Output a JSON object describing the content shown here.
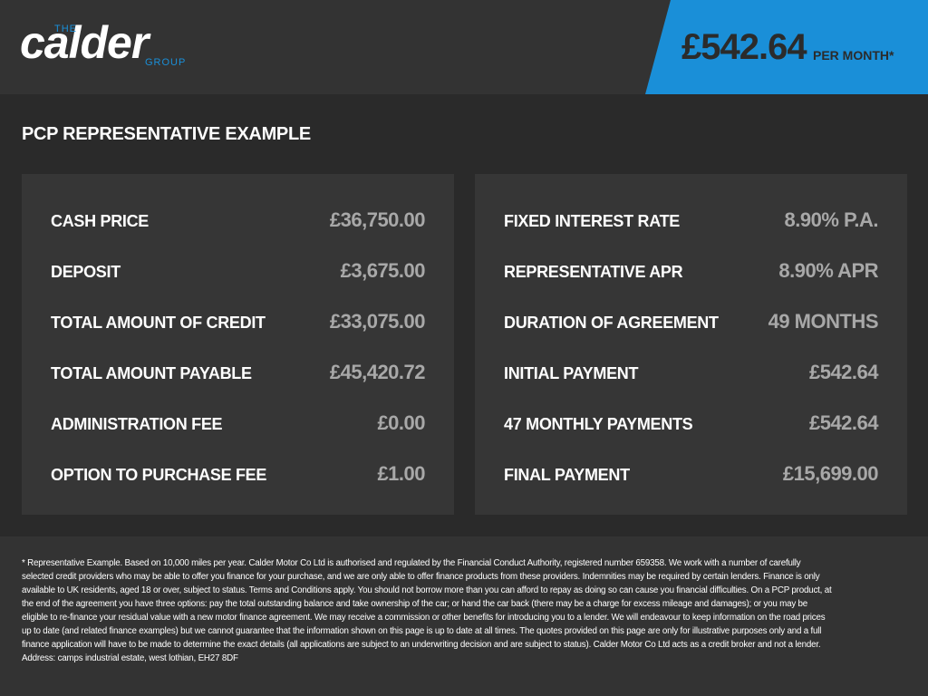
{
  "header": {
    "logo": {
      "top": "THE",
      "name": "calder",
      "bottom": "GROUP"
    },
    "price": "£542.64",
    "price_suffix": "PER MONTH*"
  },
  "section_title": "PCP REPRESENTATIVE EXAMPLE",
  "left_panel": {
    "rows": [
      [
        "CASH PRICE",
        "£36,750.00"
      ],
      [
        "DEPOSIT",
        "£3,675.00"
      ],
      [
        "TOTAL AMOUNT OF CREDIT",
        "£33,075.00"
      ],
      [
        "TOTAL AMOUNT PAYABLE",
        "£45,420.72"
      ],
      [
        "ADMINISTRATION FEE",
        "£0.00"
      ],
      [
        "OPTION TO PURCHASE FEE",
        "£1.00"
      ]
    ]
  },
  "right_panel": {
    "rows": [
      [
        "FIXED INTEREST RATE",
        "8.90% P.A."
      ],
      [
        "REPRESENTATIVE APR",
        "8.90% APR"
      ],
      [
        "DURATION OF AGREEMENT",
        "49 MONTHS"
      ],
      [
        "INITIAL PAYMENT",
        "£542.64"
      ],
      [
        "47 MONTHLY PAYMENTS",
        "£542.64"
      ],
      [
        "FINAL PAYMENT",
        "£15,699.00"
      ]
    ]
  },
  "disclaimer": "* Representative Example. Based on 10,000 miles per year. Calder Motor Co Ltd is authorised and regulated by the Financial Conduct Authority, registered number 659358. We work with a number of carefully selected credit providers who may be able to offer you finance for your purchase, and we are only able to offer finance products from these providers. Indemnities may be required by certain lenders. Finance is only available to UK residents, aged 18 or over, subject to status. Terms and Conditions apply. You should not borrow more than you can afford to repay as doing so can cause you financial difficulties. On a PCP product, at the end of the agreement you have three options: pay the total outstanding balance and take ownership of the car; or hand the car back (there may be a charge for excess mileage and damages); or you may be eligible to re-finance your residual value with a new motor finance agreement. We may receive a commission or other benefits for introducing you to a lender. We will endeavour to keep information on the road prices up to date (and related finance examples) but we cannot guarantee that the information shown on this page is up to date at all times. The quotes provided on this page are only for illustrative purposes only and a full finance application will have to be made to determine the exact details (all applications are subject to an underwriting decision and are subject to status). Calder Motor Co Ltd acts as a credit broker and not a lender. Address: camps industrial estate, west lothian, EH27 8DF"
}
